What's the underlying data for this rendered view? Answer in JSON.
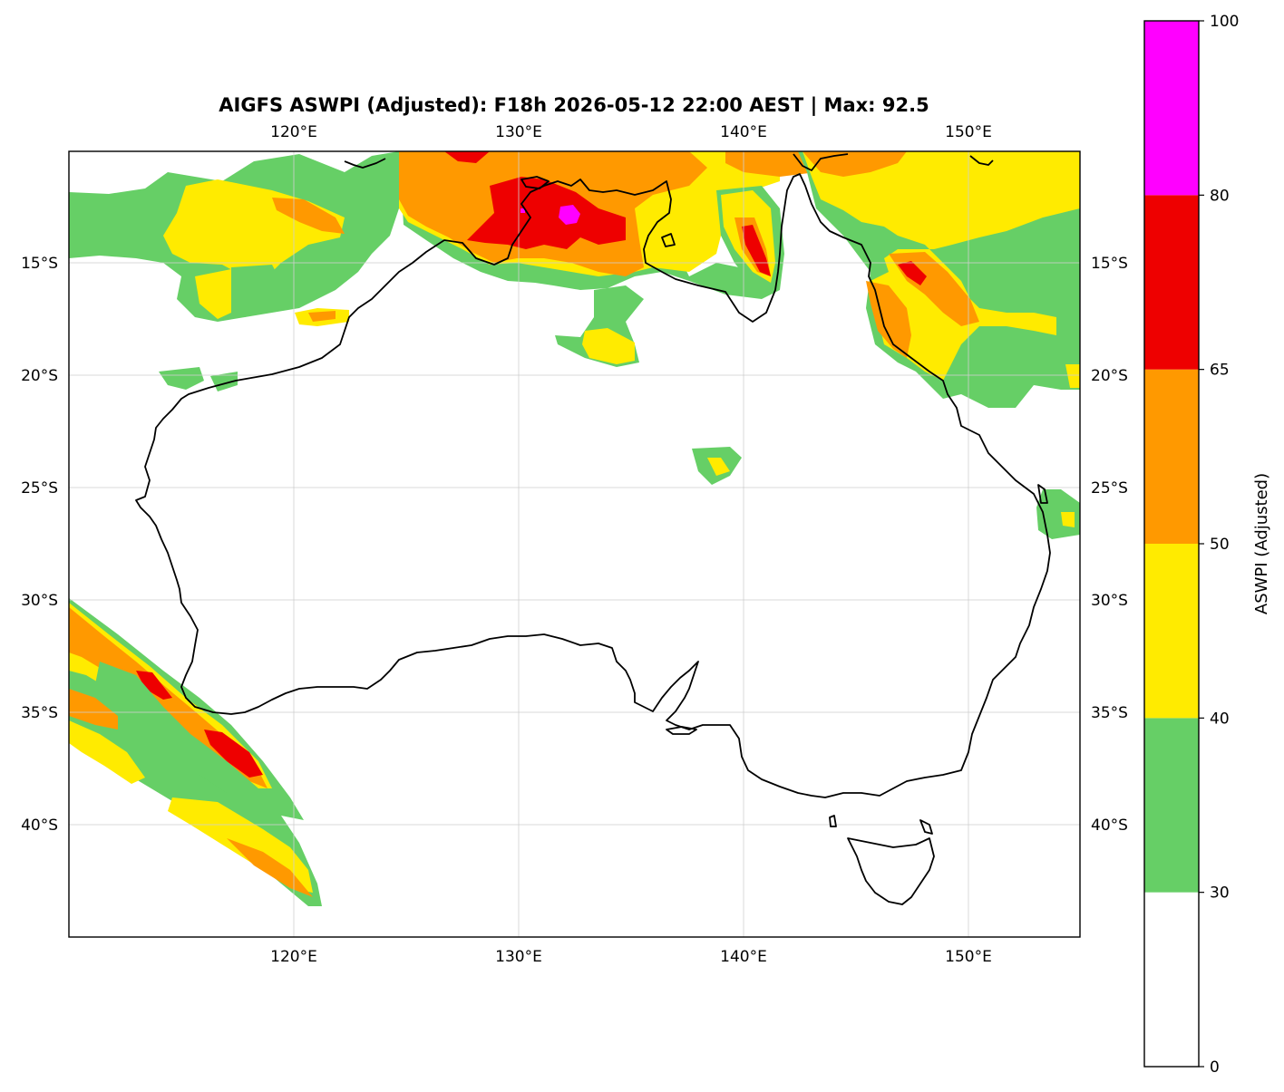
{
  "title": "AIGFS ASWPI (Adjusted): F18h 2026-05-12 22:00 AEST | Max: 92.5",
  "map": {
    "lon_range": [
      110,
      155
    ],
    "lat_range": [
      -45,
      -10
    ],
    "lon_ticks": [
      {
        "value": 120,
        "label": "120°E"
      },
      {
        "value": 130,
        "label": "130°E"
      },
      {
        "value": 140,
        "label": "140°E"
      },
      {
        "value": 150,
        "label": "150°E"
      }
    ],
    "lat_ticks": [
      {
        "value": -15,
        "label": "15°S"
      },
      {
        "value": -20,
        "label": "20°S"
      },
      {
        "value": -25,
        "label": "25°S"
      },
      {
        "value": -30,
        "label": "30°S"
      },
      {
        "value": -35,
        "label": "35°S"
      },
      {
        "value": -40,
        "label": "40°S"
      }
    ],
    "gridlines": true,
    "max_value": 92.5
  },
  "colorbar": {
    "label": "ASWPI (Adjusted)",
    "ticks": [
      "0",
      "30",
      "40",
      "50",
      "65",
      "80",
      "100"
    ],
    "bins": [
      {
        "from": 0,
        "to": 30,
        "color": "#ffffff"
      },
      {
        "from": 30,
        "to": 40,
        "color": "#66cf66"
      },
      {
        "from": 40,
        "to": 50,
        "color": "#ffeb00"
      },
      {
        "from": 50,
        "to": 65,
        "color": "#ff9900"
      },
      {
        "from": 65,
        "to": 80,
        "color": "#ee0000"
      },
      {
        "from": 80,
        "to": 100,
        "color": "#ff00ff"
      }
    ]
  }
}
